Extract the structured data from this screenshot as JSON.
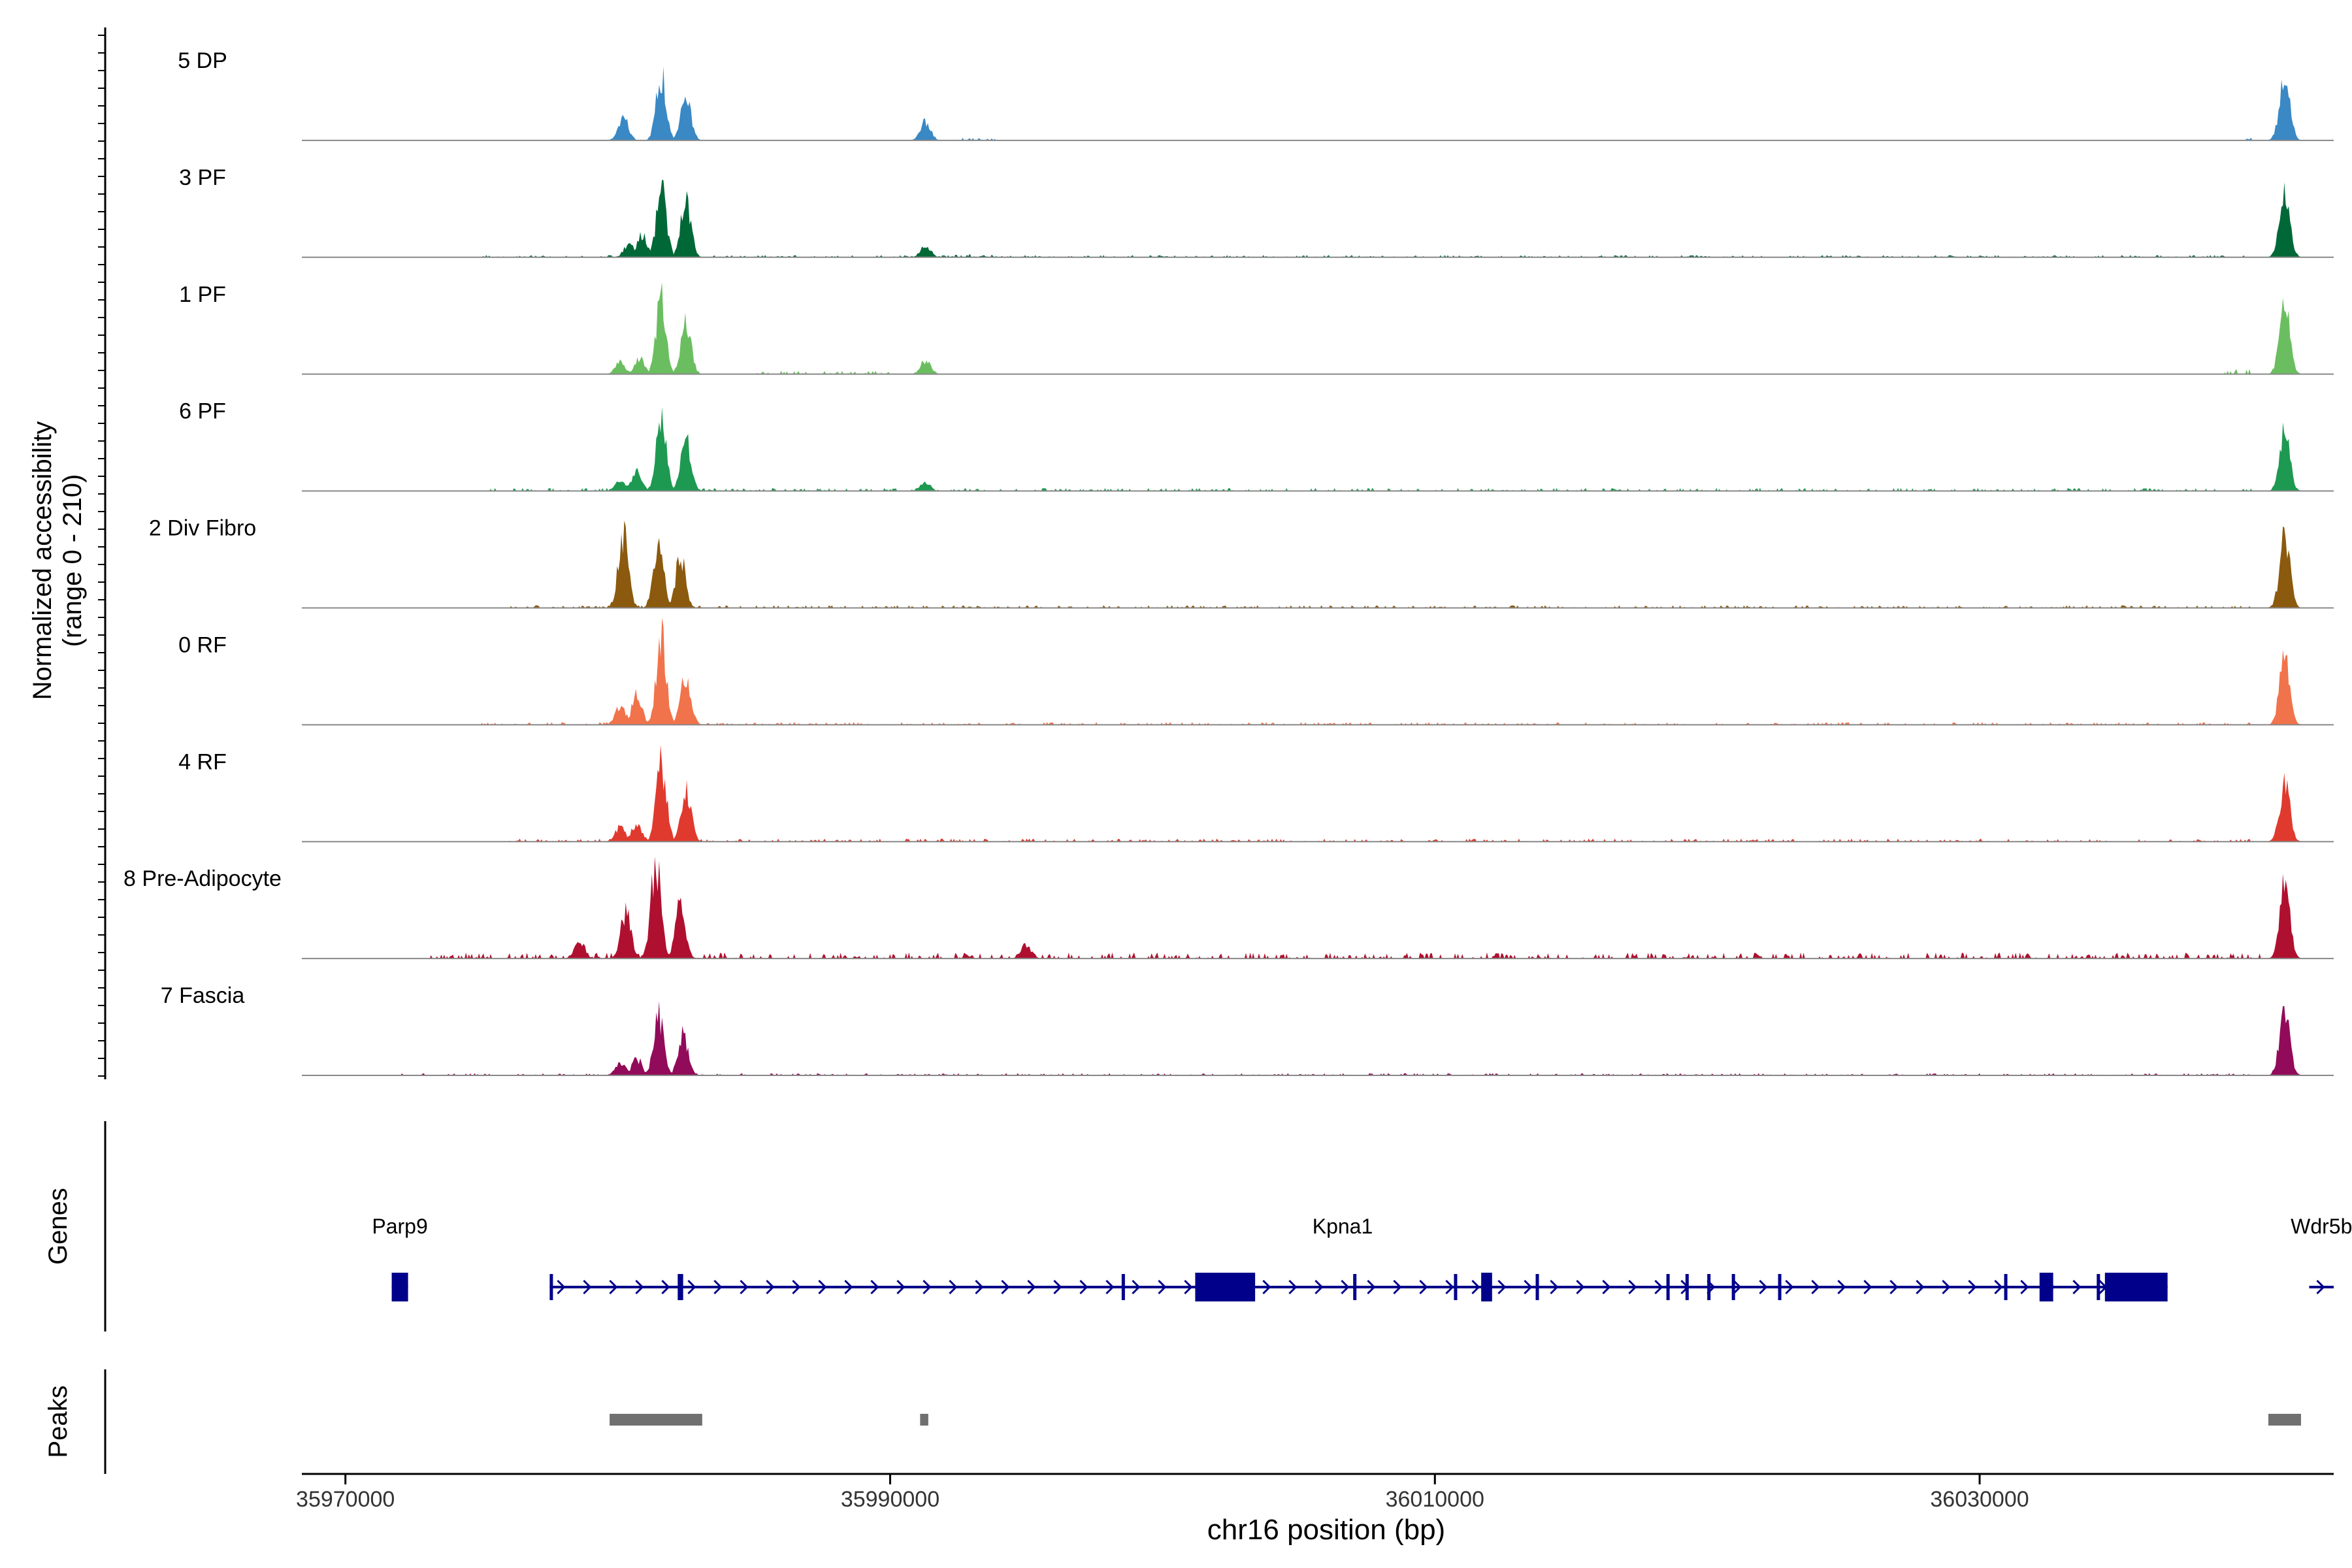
{
  "chart_data": {
    "type": "area",
    "title": "",
    "ylabel": [
      "Normalized accessibility",
      "(range 0 - 210)"
    ],
    "xlabel": "chr16 position (bp)",
    "xlim": [
      35968400,
      36043000
    ],
    "ylim": [
      0,
      210
    ],
    "grid": false,
    "x_ticks": [
      {
        "value": 35970000,
        "label": "35970000"
      },
      {
        "value": 35990000,
        "label": "35990000"
      },
      {
        "value": 36010000,
        "label": "36010000"
      },
      {
        "value": 36030000,
        "label": "36030000"
      }
    ],
    "tracks": [
      {
        "label": "5 DP",
        "color": "#3A88C4",
        "peaks": [
          [
            35980200,
            70
          ],
          [
            35981600,
            195
          ],
          [
            35982500,
            120
          ],
          [
            35991300,
            55
          ],
          [
            36041200,
            200
          ]
        ],
        "noise": [
          [
            35992500,
            35994000,
            6
          ],
          [
            36039800,
            36040200,
            12
          ]
        ]
      },
      {
        "label": "3 PF",
        "color": "#006837",
        "peaks": [
          [
            35980400,
            40
          ],
          [
            35980900,
            65
          ],
          [
            35981600,
            200
          ],
          [
            35982500,
            170
          ],
          [
            35991300,
            35
          ],
          [
            36041200,
            210
          ]
        ],
        "noise": [
          [
            35975000,
            36040000,
            5
          ],
          [
            35990500,
            35994000,
            8
          ]
        ]
      },
      {
        "label": "1 PF",
        "color": "#6BBE60",
        "peaks": [
          [
            35980100,
            35
          ],
          [
            35980800,
            45
          ],
          [
            35981600,
            220
          ],
          [
            35982500,
            150
          ],
          [
            35991300,
            40
          ],
          [
            36041200,
            215
          ]
        ],
        "noise": [
          [
            35985000,
            35990000,
            8
          ],
          [
            36039000,
            36040000,
            12
          ]
        ]
      },
      {
        "label": "6 PF",
        "color": "#1E9951",
        "peaks": [
          [
            35980100,
            30
          ],
          [
            35980700,
            55
          ],
          [
            35981600,
            220
          ],
          [
            35982500,
            165
          ],
          [
            35991300,
            25
          ],
          [
            36041200,
            180
          ]
        ],
        "noise": [
          [
            35975000,
            36040000,
            7
          ]
        ]
      },
      {
        "label": "2 Div Fibro",
        "color": "#8B5A0E",
        "peaks": [
          [
            35980200,
            220
          ],
          [
            35981500,
            220
          ],
          [
            35982300,
            145
          ],
          [
            36041200,
            210
          ]
        ],
        "noise": [
          [
            35976000,
            36040000,
            6
          ],
          [
            35979500,
            35980100,
            15
          ]
        ]
      },
      {
        "label": "0 RF",
        "color": "#F1734B",
        "peaks": [
          [
            35980100,
            60
          ],
          [
            35980700,
            85
          ],
          [
            35981600,
            255
          ],
          [
            35982500,
            150
          ],
          [
            36041200,
            200
          ]
        ],
        "noise": [
          [
            35975000,
            36040000,
            6
          ]
        ]
      },
      {
        "label": "4 RF",
        "color": "#E03A2E",
        "peaks": [
          [
            35980100,
            45
          ],
          [
            35980700,
            55
          ],
          [
            35981600,
            230
          ],
          [
            35982500,
            165
          ],
          [
            36041200,
            180
          ]
        ],
        "noise": [
          [
            35976000,
            36040000,
            7
          ]
        ]
      },
      {
        "label": "8 Pre-Adipocyte",
        "color": "#B0102F",
        "peaks": [
          [
            35978600,
            55
          ],
          [
            35980300,
            140
          ],
          [
            35981400,
            280
          ],
          [
            35982300,
            160
          ],
          [
            35995000,
            40
          ],
          [
            36041200,
            210
          ]
        ],
        "noise": [
          [
            35973000,
            36040500,
            14
          ],
          [
            35977500,
            35979500,
            10
          ]
        ]
      },
      {
        "label": "7 Fascia",
        "color": "#920B5A",
        "peaks": [
          [
            35980100,
            40
          ],
          [
            35980700,
            50
          ],
          [
            35981500,
            175
          ],
          [
            35982400,
            120
          ],
          [
            36041200,
            200
          ]
        ],
        "noise": [
          [
            35972000,
            36040000,
            5
          ],
          [
            36021000,
            36021400,
            15
          ]
        ]
      }
    ],
    "genes": {
      "title": "Genes",
      "color": "#00008B",
      "items": [
        {
          "name": "Parp9",
          "start": 35971700,
          "end": 35972300,
          "strand": "",
          "exons": [
            [
              35971700,
              35972300
            ]
          ]
        },
        {
          "name": "Kpna1",
          "start": 35977500,
          "end": 36036900,
          "strand": "+",
          "exons": [
            [
              35977500,
              35977600
            ],
            [
              35982200,
              35982400
            ],
            [
              35998500,
              35998600
            ],
            [
              36001200,
              36003400
            ],
            [
              36007000,
              36007100
            ],
            [
              36010700,
              36010800
            ],
            [
              36011700,
              36012100
            ],
            [
              36013700,
              36013800
            ],
            [
              36018500,
              36018600
            ],
            [
              36019200,
              36019300
            ],
            [
              36020000,
              36020100
            ],
            [
              36020900,
              36021000
            ],
            [
              36022600,
              36022700
            ],
            [
              36030900,
              36031000
            ],
            [
              36032200,
              36032700
            ],
            [
              36034300,
              36034400
            ],
            [
              36034600,
              36036900
            ]
          ]
        },
        {
          "name": "Wdr5b",
          "start": 36042100,
          "end": 36043000,
          "strand": "+",
          "exons": []
        }
      ]
    },
    "peaks_track": {
      "title": "Peaks",
      "color": "#707070",
      "regions": [
        [
          35979700,
          35983100
        ],
        [
          35991100,
          35991400
        ],
        [
          36040600,
          36041800
        ]
      ]
    }
  }
}
